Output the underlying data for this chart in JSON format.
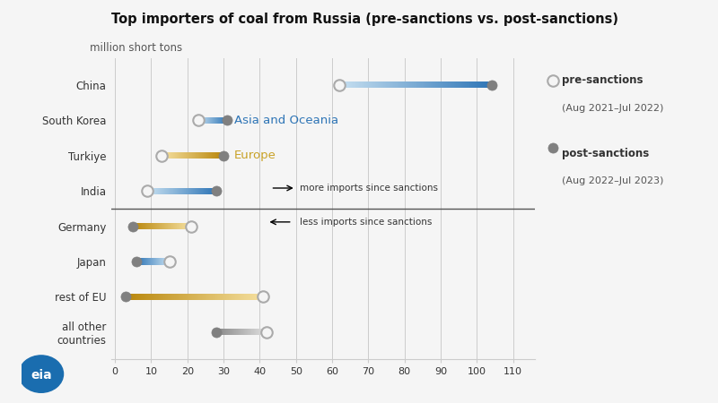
{
  "title": "Top importers of coal from Russia (pre-sanctions vs. post-sanctions)",
  "subtitle": "million short tons",
  "categories": [
    "China",
    "South Korea",
    "Turkiye",
    "India",
    "Germany",
    "Japan",
    "rest of EU",
    "all other\ncountries"
  ],
  "pre_sanctions": [
    62,
    23,
    13,
    9,
    21,
    15,
    41,
    42
  ],
  "post_sanctions": [
    104,
    31,
    30,
    28,
    5,
    6,
    3,
    28
  ],
  "region": [
    "Asia",
    "Asia",
    "Europe",
    "Asia",
    "Europe",
    "Asia",
    "Europe",
    "Other"
  ],
  "xlim": [
    0,
    116
  ],
  "xticks": [
    0,
    10,
    20,
    30,
    40,
    50,
    60,
    70,
    80,
    90,
    100,
    110
  ],
  "color_asia_light": "#c6dff0",
  "color_asia_dark": "#2e75b6",
  "color_europe_light": "#f5e0a0",
  "color_europe_dark": "#b8860b",
  "color_other_light": "#e0e0e0",
  "color_other_dark": "#888888",
  "bg_color": "#f5f5f5",
  "asia_label": "Asia and Oceania",
  "europe_label": "Europe",
  "asia_label_color": "#2e75b6",
  "europe_label_color": "#c9a227",
  "pre_edge_color": "#aaaaaa",
  "post_fill_color": "#808080",
  "post_edge_color": "#808080"
}
